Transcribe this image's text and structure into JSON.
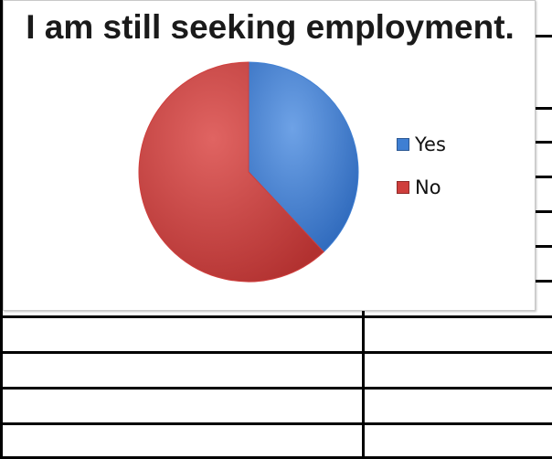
{
  "chart_data": {
    "type": "pie",
    "title": "I am still seeking employment.",
    "categories": [
      "Yes",
      "No"
    ],
    "values": [
      38,
      62
    ],
    "colors": [
      "#3f7fd3",
      "#cf3e3c"
    ],
    "legend_position": "right"
  }
}
